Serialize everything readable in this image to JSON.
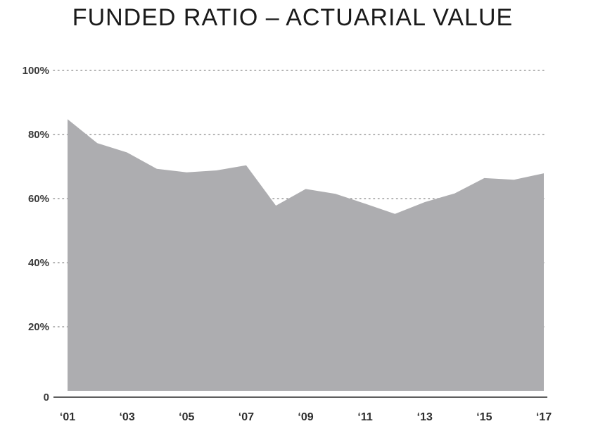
{
  "chart_data": {
    "type": "area",
    "title": "FUNDED RATIO – ACTUARIAL VALUE",
    "xlabel": "",
    "ylabel": "",
    "x": [
      "'01",
      "'02",
      "'03",
      "'04",
      "'05",
      "'06",
      "'07",
      "'08",
      "'09",
      "'10",
      "'11",
      "'12",
      "'13",
      "'14",
      "'15",
      "'16",
      "'17"
    ],
    "x_tick_labels": [
      "‘01",
      "‘03",
      "‘05",
      "‘07",
      "‘09",
      "‘11",
      "‘13",
      "‘15",
      "‘17"
    ],
    "values": [
      84.8,
      77.3,
      74.4,
      69.3,
      68.2,
      68.8,
      70.4,
      57.8,
      63.0,
      61.5,
      58.4,
      55.2,
      58.9,
      61.6,
      66.4,
      65.9,
      67.9
    ],
    "ylim": [
      0,
      100
    ],
    "y_ticks": [
      {
        "value": 0,
        "label": "0"
      },
      {
        "value": 20,
        "label": "20%"
      },
      {
        "value": 40,
        "label": "40%"
      },
      {
        "value": 60,
        "label": "60%"
      },
      {
        "value": 80,
        "label": "80%"
      },
      {
        "value": 100,
        "label": "100%"
      }
    ],
    "grid": true,
    "fill_color": "#adadb0",
    "legend": "none"
  }
}
